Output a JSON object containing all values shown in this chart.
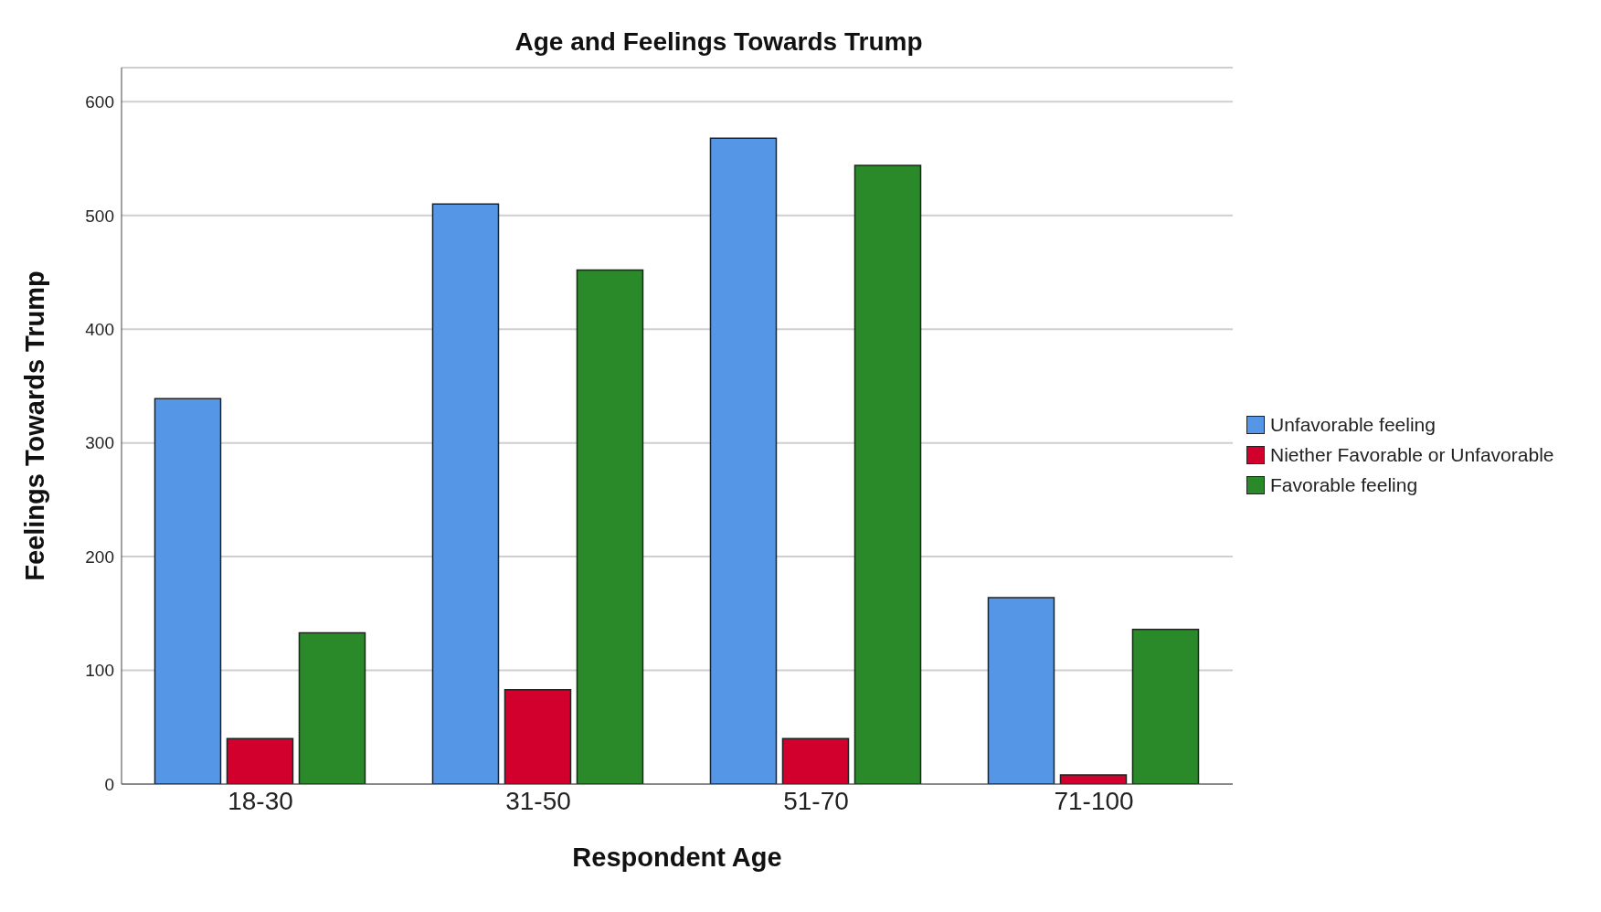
{
  "chart_data": {
    "type": "bar",
    "title": "Age and Feelings Towards Trump",
    "xlabel": "Respondent Age",
    "ylabel": "Feelings Towards Trump",
    "categories": [
      "18-30",
      "31-50",
      "51-70",
      "71-100"
    ],
    "series": [
      {
        "name": "Unfavorable feeling",
        "color": "#5596e6",
        "values": [
          339,
          510,
          568,
          164
        ]
      },
      {
        "name": "Niether Favorable or Unfavorable",
        "color": "#d2002d",
        "values": [
          40,
          83,
          40,
          8
        ]
      },
      {
        "name": "Favorable feeling",
        "color": "#2a8a2a",
        "values": [
          133,
          452,
          544,
          136
        ]
      }
    ],
    "ylim": [
      0,
      630
    ],
    "yticks": [
      0,
      100,
      200,
      300,
      400,
      500,
      600
    ],
    "grid": "y",
    "legend": "right"
  }
}
